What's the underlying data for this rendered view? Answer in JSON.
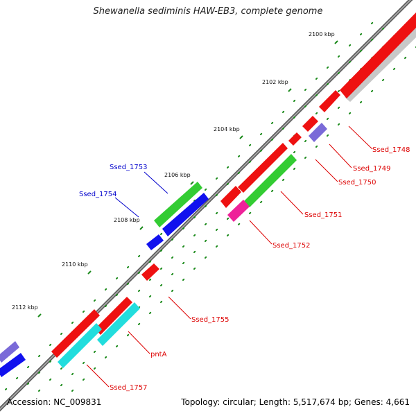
{
  "title": "Shewanella sediminis HAW-EB3, complete genome",
  "footer": {
    "accession_label": "Accession:",
    "accession": "NC_009831",
    "topology_label": "Topology:",
    "topology": "circular",
    "length_label": "Length:",
    "length": "5,517,674 bp",
    "genes_label": "Genes:",
    "genes": "4,661"
  },
  "colors": {
    "backbone": "#808080",
    "tick": "#1a8a1a",
    "red_gene": "#ee1111",
    "grey_gene": "#c8c8c8",
    "lilac_gene": "#7a6ad8",
    "green_gene": "#33cc33",
    "blue_gene": "#1111ee",
    "magenta_gene": "#ee2299",
    "cyan_gene": "#22dddd",
    "red_label": "#dd0000",
    "blue_label": "#0000cc"
  },
  "ruler": [
    {
      "label": "2100 kbp"
    },
    {
      "label": "2102 kbp"
    },
    {
      "label": "2104 kbp"
    },
    {
      "label": "2106 kbp"
    },
    {
      "label": "2108 kbp"
    },
    {
      "label": "2110 kbp"
    },
    {
      "label": "2112 kbp"
    }
  ],
  "gene_labels": [
    {
      "name": "Ssed_1748",
      "strand": "red"
    },
    {
      "name": "Ssed_1749",
      "strand": "red"
    },
    {
      "name": "Ssed_1750",
      "strand": "red"
    },
    {
      "name": "Ssed_1751",
      "strand": "red"
    },
    {
      "name": "Ssed_1752",
      "strand": "red"
    },
    {
      "name": "Ssed_1753",
      "strand": "blue"
    },
    {
      "name": "Ssed_1754",
      "strand": "blue"
    },
    {
      "name": "Ssed_1755",
      "strand": "red"
    },
    {
      "name": "pntA",
      "strand": "red"
    },
    {
      "name": "Ssed_1757",
      "strand": "red"
    }
  ]
}
